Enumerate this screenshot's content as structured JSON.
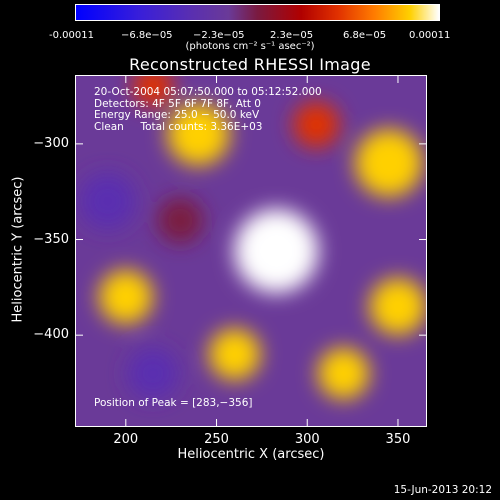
{
  "colorbar": {
    "ticks": [
      "-0.00011",
      "−6.8e−05",
      "−2.3e−05",
      "2.3e−05",
      "6.8e−05",
      "0.00011"
    ],
    "units": "(photons cm⁻² s⁻¹ asec⁻²)"
  },
  "chart_data": {
    "type": "heatmap",
    "title": "Reconstructed RHESSI Image",
    "xlabel": "Heliocentric X (arcsec)",
    "ylabel": "Heliocentric Y (arcsec)",
    "xlim": [
      172,
      366
    ],
    "ylim": [
      -448,
      -264
    ],
    "x_ticks": [
      200,
      250,
      300,
      350
    ],
    "y_ticks": [
      -300,
      -350,
      -400
    ],
    "value_range": [
      -0.00011,
      0.00011
    ],
    "colormap": [
      "#0000ff",
      "#5a2fb0",
      "#7a1a40",
      "#e03000",
      "#ffd000",
      "#ffffff"
    ],
    "info": [
      "20-Oct-2004 05:07:50.000 to 05:12:52.000",
      "Detectors: 4F 5F 6F 7F 8F, Att 0",
      "Energy Range: 25.0 − 50.0 keV",
      "Clean     Total counts: 3.36E+03"
    ],
    "peak": "Position of Peak = [283,−356]",
    "peak_xy": [
      283,
      -356
    ],
    "sources": [
      {
        "x": 283,
        "y": -356,
        "value": 0.00011
      },
      {
        "x": 240,
        "y": -295,
        "value": 7e-05
      },
      {
        "x": 345,
        "y": -310,
        "value": 8e-05
      },
      {
        "x": 350,
        "y": -385,
        "value": 6e-05
      },
      {
        "x": 200,
        "y": -380,
        "value": 5.5e-05
      },
      {
        "x": 260,
        "y": -410,
        "value": 5e-05
      },
      {
        "x": 320,
        "y": -420,
        "value": 5e-05
      },
      {
        "x": 305,
        "y": -290,
        "value": 4e-05
      },
      {
        "x": 215,
        "y": -270,
        "value": 3e-05
      },
      {
        "x": 190,
        "y": -330,
        "value": -6e-05
      },
      {
        "x": 230,
        "y": -340,
        "value": -4e-05
      },
      {
        "x": 215,
        "y": -420,
        "value": -5e-05
      }
    ]
  },
  "timestamp": "15-Jun-2013 20:12"
}
